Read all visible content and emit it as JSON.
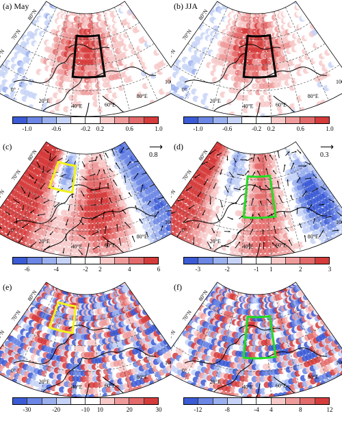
{
  "panels": [
    {
      "title": "(a) May",
      "ref": "",
      "ticks": [
        "-1.0",
        "-0.6",
        "-0.2",
        "0.2",
        "0.6",
        "1.0"
      ],
      "box": "black",
      "field": "ice"
    },
    {
      "title": "(b) JJA",
      "ref": "",
      "ticks": [
        "-1.0",
        "-0.6",
        "-0.2",
        "0.2",
        "0.6",
        "1.0"
      ],
      "box": "black",
      "field": "ice"
    },
    {
      "title": "(c)",
      "ref": "0.8",
      "ticks": [
        "-6",
        "-4",
        "-2",
        "2",
        "4",
        "6"
      ],
      "box": "#f2f21a",
      "field": "dipole"
    },
    {
      "title": "(d)",
      "ref": "0.3",
      "ticks": [
        "-3",
        "-2",
        "-1",
        "1",
        "2",
        "3"
      ],
      "box": "#22dd22",
      "field": "dipole2"
    },
    {
      "title": "(e)",
      "ref": "",
      "ticks": [
        "-30",
        "-20",
        "-10",
        "10",
        "20",
        "30"
      ],
      "box": "#f2f21a",
      "field": "noise"
    },
    {
      "title": "(f)",
      "ref": "",
      "ticks": [
        "-12",
        "-8",
        "-4",
        "4",
        "8",
        "12"
      ],
      "box": "#22dd22",
      "field": "noise2"
    }
  ],
  "lat_labels": [
    "80°N",
    "70°N",
    "60°N"
  ],
  "lon_labels": [
    "20°W",
    "0°",
    "20°E",
    "40°E",
    "60°E",
    "80°E",
    "100°E"
  ],
  "colorbar_colors": [
    "#3b5bd6",
    "#6b86e4",
    "#9bb0ef",
    "#c7d3f7",
    "#ffffff",
    "#ffffff",
    "#f7c9c9",
    "#ef9b9b",
    "#e46b6b",
    "#d63b3b"
  ],
  "colors": {
    "coast": "#000000",
    "grid": "#444444"
  }
}
